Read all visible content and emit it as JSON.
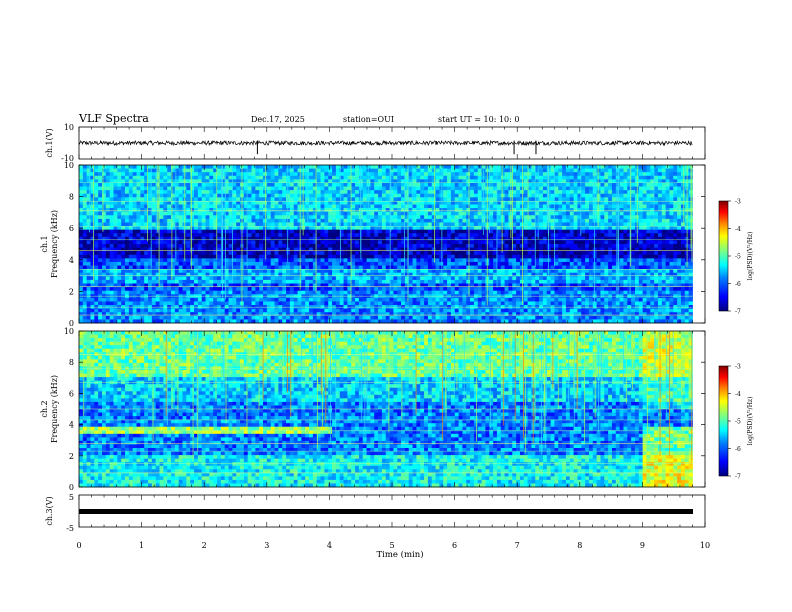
{
  "header": {
    "title": "VLF Spectra",
    "date": "Dec.17, 2025",
    "station": "station=OUI",
    "start_ut": "start  UT =  10: 10: 0"
  },
  "chart_data": [
    {
      "type": "line",
      "name": "ch1-waveform",
      "ylabel": "ch.1(V)",
      "ylim": [
        -10,
        10
      ],
      "ytick_labels": [
        "10",
        "-10"
      ],
      "xlim": [
        0,
        10
      ],
      "spikes_at_min": [
        2.85,
        6.95,
        7.3
      ]
    },
    {
      "type": "heatmap",
      "name": "ch1-spectrogram",
      "ylabel_line1": "ch.1",
      "ylabel_line2": "Frequency (kHz)",
      "ylim": [
        0,
        10
      ],
      "yticks": [
        "0",
        "2",
        "4",
        "6",
        "8",
        "10"
      ],
      "data_end_min": 9.8,
      "colorbar": {
        "label": "log(PSD)(V²/Hz)",
        "range": [
          -7,
          -3
        ],
        "ticks": [
          "-3",
          "-4",
          "-5",
          "-6",
          "-7"
        ]
      }
    },
    {
      "type": "heatmap",
      "name": "ch2-spectrogram",
      "ylabel_line1": "ch.2",
      "ylabel_line2": "Frequency (kHz)",
      "ylim": [
        0,
        10
      ],
      "yticks": [
        "0",
        "2",
        "4",
        "6",
        "8",
        "10"
      ],
      "data_end_min": 9.8,
      "regime_change_min": [
        4.05,
        9.0
      ],
      "colorbar": {
        "label": "log(PSD)(V²/Hz)",
        "range": [
          -7,
          -3
        ],
        "ticks": [
          "-3",
          "-4",
          "-5",
          "-6",
          "-7"
        ]
      }
    },
    {
      "type": "line",
      "name": "ch3-waveform",
      "ylabel": "ch.3(V)",
      "ylim": [
        -5,
        5
      ],
      "ytick_labels": [
        "5",
        "-5"
      ],
      "constant_value": 0,
      "xlim": [
        0,
        10
      ],
      "xlabel": "Time (min)",
      "xticks": [
        "0",
        "1",
        "2",
        "3",
        "4",
        "5",
        "6",
        "7",
        "8",
        "9",
        "10"
      ]
    }
  ],
  "colors": {
    "colormap": [
      "#00007f",
      "#0000ff",
      "#0080ff",
      "#00ffff",
      "#80ff80",
      "#ffff00",
      "#ff8000",
      "#ff0000",
      "#7f0000"
    ]
  }
}
